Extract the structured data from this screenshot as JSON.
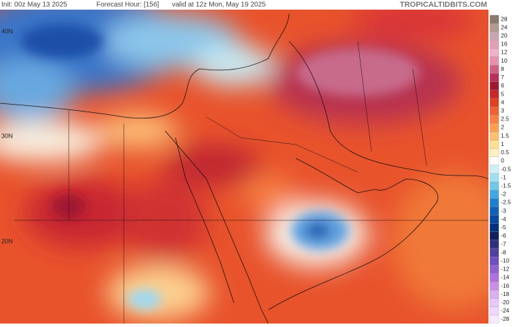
{
  "header": {
    "init": "Init: 00z May 13 2025",
    "forecast_hour": "Forecast Hour: [156]",
    "valid": "valid at 12z Mon, May 19 2025",
    "source": "TROPICALTIDBITS.COM"
  },
  "map": {
    "lat_labels": [
      "40N",
      "30N",
      "20N"
    ]
  },
  "legend": {
    "labels": [
      "28",
      "24",
      "20",
      "16",
      "12",
      "10",
      "8",
      "7",
      "6",
      "5",
      "4",
      "3",
      "2.5",
      "2",
      "1.5",
      "1",
      "0.5",
      "0",
      "-0.5",
      "-1",
      "-1.5",
      "-2",
      "-2.5",
      "-3",
      "-4",
      "-5",
      "-6",
      "-7",
      "-8",
      "-10",
      "-12",
      "-14",
      "-16",
      "-18",
      "-20",
      "-24",
      "-28"
    ],
    "colors": [
      "#8a7a6e",
      "#b09a8e",
      "#c6a6b2",
      "#e0a0b8",
      "#f0b0c8",
      "#e890b0",
      "#d06080",
      "#b8305a",
      "#a01830",
      "#c82828",
      "#e04020",
      "#f06030",
      "#f88040",
      "#fca050",
      "#fcc070",
      "#fde090",
      "#fef0c0",
      "#ffffff",
      "#d0f0f8",
      "#a0e0f0",
      "#70c8e8",
      "#40a8e0",
      "#2080d0",
      "#1060b8",
      "#0848a0",
      "#003080",
      "#102060",
      "#303080",
      "#5040a0",
      "#7050c0",
      "#9060d0",
      "#b070e0",
      "#c890e8",
      "#d8b0f0",
      "#e8c8f8",
      "#f0d8ff",
      "#f8eaff"
    ]
  }
}
